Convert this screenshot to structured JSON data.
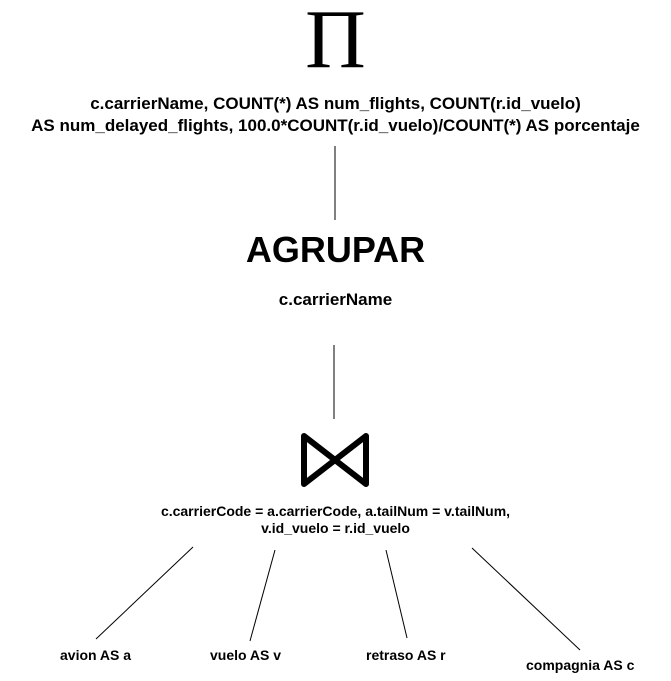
{
  "projection": {
    "symbol": "Π",
    "line1": "c.carrierName, COUNT(*) AS num_flights, COUNT(r.id_vuelo)",
    "line2": "AS num_delayed_flights, 100.0*COUNT(r.id_vuelo)/COUNT(*) AS porcentaje"
  },
  "group": {
    "title": "AGRUPAR",
    "attribute": "c.carrierName"
  },
  "join": {
    "line1": "c.carrierCode = a.carrierCode, a.tailNum = v.tailNum,",
    "line2": "v.id_vuelo = r.id_vuelo"
  },
  "relations": [
    {
      "label": "avion AS a"
    },
    {
      "label": "vuelo AS v"
    },
    {
      "label": "retraso AS r"
    },
    {
      "label": "compagnia AS c"
    }
  ]
}
